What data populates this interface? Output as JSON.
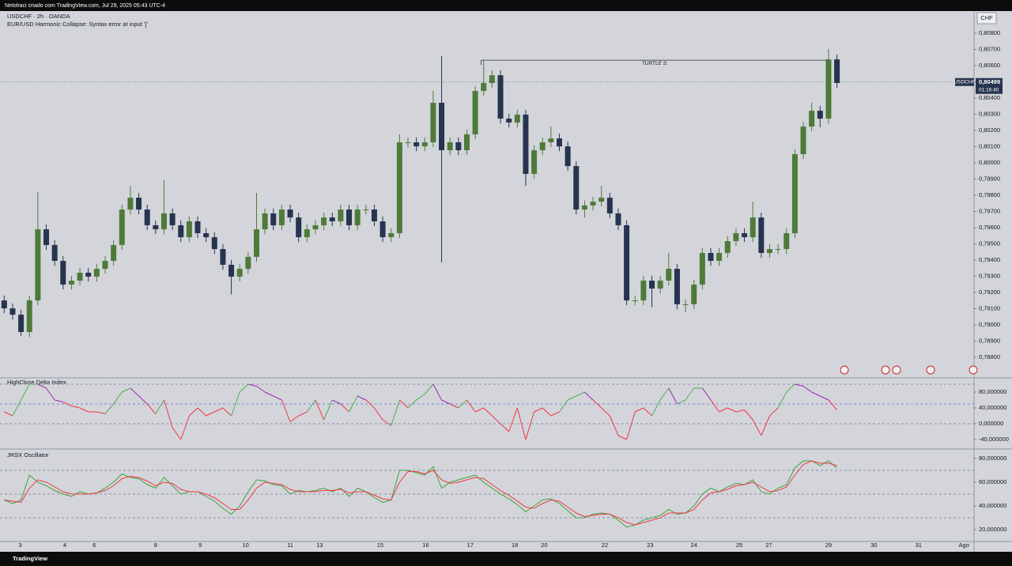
{
  "header": {
    "text": "Netolraci criado com TradingView.com, Jul 29, 2025 05:43 UTC-4"
  },
  "footer": {
    "text": "TradingView"
  },
  "chart_data": [
    {
      "type": "candlestick",
      "title": "USDCHF · 2h · OANDA",
      "subtitle": "EUR/USD Harmonic Collapse: Syntax error at input '['",
      "currency": "CHF",
      "symbol": "USDCHF",
      "last_price": {
        "value": 0.80499,
        "label": "0,80499"
      },
      "countdown": "01:16:40",
      "annotation": {
        "text": "TURTLE S.",
        "value": 0.80634,
        "x": [
          56.7,
          98
        ]
      },
      "up_color": "#4f7a3a",
      "down_color": "#27344f",
      "xlim": [
        -0.5,
        115.3
      ],
      "xticks": [
        {
          "value": 1.9,
          "label": "3"
        },
        {
          "value": 7.2,
          "label": "4"
        },
        {
          "value": 10.7,
          "label": "6"
        },
        {
          "value": 18,
          "label": "8"
        },
        {
          "value": 23.3,
          "label": "9"
        },
        {
          "value": 28.7,
          "label": "10"
        },
        {
          "value": 34,
          "label": "11"
        },
        {
          "value": 37.5,
          "label": "13"
        },
        {
          "value": 44.7,
          "label": "15"
        },
        {
          "value": 50.1,
          "label": "16"
        },
        {
          "value": 55.4,
          "label": "17"
        },
        {
          "value": 60.7,
          "label": "18"
        },
        {
          "value": 64.2,
          "label": "20"
        },
        {
          "value": 71.4,
          "label": "22"
        },
        {
          "value": 76.8,
          "label": "23"
        },
        {
          "value": 82,
          "label": "24"
        },
        {
          "value": 87.4,
          "label": "25"
        },
        {
          "value": 90.9,
          "label": "27"
        },
        {
          "value": 98,
          "label": "29"
        },
        {
          "value": 103.4,
          "label": "30"
        },
        {
          "value": 108.7,
          "label": "31"
        },
        {
          "value": 114.1,
          "label": "Ago"
        }
      ],
      "ylim": [
        0.78673,
        0.80937
      ],
      "yticks": [
        {
          "value": 0.788,
          "label": "0,78800"
        },
        {
          "value": 0.789,
          "label": "0,78900"
        },
        {
          "value": 0.79,
          "label": "0,79000"
        },
        {
          "value": 0.791,
          "label": "0,79100"
        },
        {
          "value": 0.792,
          "label": "0,79200"
        },
        {
          "value": 0.793,
          "label": "0,79300"
        },
        {
          "value": 0.794,
          "label": "0,79400"
        },
        {
          "value": 0.795,
          "label": "0,79500"
        },
        {
          "value": 0.796,
          "label": "0,79600"
        },
        {
          "value": 0.797,
          "label": "0,79700"
        },
        {
          "value": 0.798,
          "label": "0,79800"
        },
        {
          "value": 0.799,
          "label": "0,79900"
        },
        {
          "value": 0.8,
          "label": "0,80000"
        },
        {
          "value": 0.801,
          "label": "0,80100"
        },
        {
          "value": 0.802,
          "label": "0,80200"
        },
        {
          "value": 0.803,
          "label": "0,80300"
        },
        {
          "value": 0.804,
          "label": "0,80400"
        },
        {
          "value": 0.805,
          "label": "0,80500"
        },
        {
          "value": 0.806,
          "label": "0,80600"
        },
        {
          "value": 0.807,
          "label": "0,80700"
        },
        {
          "value": 0.808,
          "label": "0,80800"
        }
      ],
      "open": [
        0.79151,
        0.79102,
        0.79063,
        0.78956,
        0.79151,
        0.7959,
        0.79493,
        0.79395,
        0.79249,
        0.79273,
        0.79322,
        0.79298,
        0.79346,
        0.79395,
        0.79493,
        0.79712,
        0.79785,
        0.79712,
        0.79615,
        0.7959,
        0.79688,
        0.79615,
        0.79541,
        0.79639,
        0.79566,
        0.79541,
        0.79468,
        0.79371,
        0.79298,
        0.79346,
        0.7942,
        0.7959,
        0.79688,
        0.79615,
        0.79712,
        0.79663,
        0.79541,
        0.7959,
        0.79615,
        0.79663,
        0.79639,
        0.79712,
        0.79615,
        0.79712,
        0.79712,
        0.79639,
        0.79541,
        0.79566,
        0.80127,
        0.80127,
        0.80102,
        0.80127,
        0.80371,
        0.80078,
        0.80127,
        0.80078,
        0.80176,
        0.80444,
        0.80493,
        0.80541,
        0.80273,
        0.80249,
        0.80298,
        0.79932,
        0.80078,
        0.80127,
        0.80151,
        0.80102,
        0.7998,
        0.79712,
        0.79737,
        0.79761,
        0.79785,
        0.79688,
        0.79615,
        0.79151,
        0.79151,
        0.79273,
        0.79224,
        0.79273,
        0.79346,
        0.79127,
        0.79127,
        0.79249,
        0.79444,
        0.79395,
        0.79444,
        0.79517,
        0.79566,
        0.79541,
        0.79663,
        0.79444,
        0.79468,
        0.79468,
        0.79566,
        0.80054,
        0.80224,
        0.80322,
        0.80273,
        0.80639
      ],
      "high": [
        0.79181,
        0.79132,
        0.79093,
        0.79181,
        0.7982,
        0.7962,
        0.79523,
        0.79425,
        0.79303,
        0.79352,
        0.79352,
        0.79376,
        0.79425,
        0.79523,
        0.79742,
        0.79858,
        0.79815,
        0.79742,
        0.79645,
        0.79893,
        0.79718,
        0.79645,
        0.79669,
        0.79669,
        0.79596,
        0.79571,
        0.79498,
        0.79401,
        0.79376,
        0.7945,
        0.79815,
        0.79718,
        0.79718,
        0.79742,
        0.79742,
        0.79693,
        0.7962,
        0.79645,
        0.79693,
        0.79693,
        0.79742,
        0.79742,
        0.79742,
        0.79742,
        0.79742,
        0.79669,
        0.79596,
        0.80176,
        0.80157,
        0.80157,
        0.80157,
        0.80444,
        0.80659,
        0.80157,
        0.80157,
        0.80206,
        0.80474,
        0.80639,
        0.80571,
        0.80571,
        0.80303,
        0.80328,
        0.80328,
        0.80108,
        0.80157,
        0.80224,
        0.80181,
        0.80132,
        0.8001,
        0.79767,
        0.79791,
        0.79858,
        0.79815,
        0.79718,
        0.79645,
        0.79181,
        0.79303,
        0.79303,
        0.79303,
        0.79444,
        0.79376,
        0.79157,
        0.79279,
        0.79474,
        0.79474,
        0.79474,
        0.79547,
        0.79596,
        0.79596,
        0.79761,
        0.79693,
        0.79498,
        0.79498,
        0.79596,
        0.80084,
        0.80254,
        0.80371,
        0.80352,
        0.80702,
        0.80669
      ],
      "low": [
        0.79072,
        0.79033,
        0.78932,
        0.78926,
        0.79121,
        0.79463,
        0.79365,
        0.79219,
        0.79219,
        0.79243,
        0.79268,
        0.79268,
        0.79316,
        0.79365,
        0.79463,
        0.79682,
        0.79682,
        0.79585,
        0.7956,
        0.7956,
        0.79585,
        0.79511,
        0.79511,
        0.79536,
        0.79511,
        0.79438,
        0.79341,
        0.79188,
        0.79268,
        0.79316,
        0.7939,
        0.7956,
        0.79585,
        0.79585,
        0.79633,
        0.79511,
        0.79511,
        0.7956,
        0.79585,
        0.79609,
        0.79609,
        0.79585,
        0.79585,
        0.79682,
        0.79609,
        0.79511,
        0.79511,
        0.79536,
        0.80097,
        0.80072,
        0.80072,
        0.80097,
        0.79385,
        0.80048,
        0.80048,
        0.80048,
        0.80146,
        0.80414,
        0.80463,
        0.80243,
        0.80219,
        0.80219,
        0.79858,
        0.79902,
        0.80048,
        0.80097,
        0.80072,
        0.7995,
        0.79682,
        0.79663,
        0.79707,
        0.79731,
        0.79658,
        0.79585,
        0.79121,
        0.79121,
        0.79121,
        0.7911,
        0.79194,
        0.79243,
        0.79097,
        0.79078,
        0.79097,
        0.79219,
        0.79365,
        0.79365,
        0.79414,
        0.79487,
        0.79511,
        0.79511,
        0.79414,
        0.79414,
        0.79438,
        0.79438,
        0.79536,
        0.80024,
        0.80194,
        0.80219,
        0.80243,
        0.80464
      ],
      "close": [
        0.79102,
        0.79063,
        0.78956,
        0.79151,
        0.7959,
        0.79493,
        0.79395,
        0.79249,
        0.79273,
        0.79322,
        0.79298,
        0.79346,
        0.79395,
        0.79493,
        0.79712,
        0.79785,
        0.79712,
        0.79615,
        0.7959,
        0.79688,
        0.79615,
        0.79541,
        0.79639,
        0.79566,
        0.79541,
        0.79468,
        0.79371,
        0.79298,
        0.79346,
        0.7942,
        0.7959,
        0.79688,
        0.79615,
        0.79712,
        0.79663,
        0.79541,
        0.7959,
        0.79615,
        0.79663,
        0.79639,
        0.79712,
        0.79615,
        0.79712,
        0.79712,
        0.79639,
        0.79541,
        0.79566,
        0.80127,
        0.80127,
        0.80102,
        0.80127,
        0.80371,
        0.80078,
        0.80127,
        0.80078,
        0.80176,
        0.80444,
        0.80493,
        0.80541,
        0.80273,
        0.80249,
        0.80298,
        0.79932,
        0.80078,
        0.80127,
        0.80151,
        0.80102,
        0.7998,
        0.79712,
        0.79737,
        0.79761,
        0.79785,
        0.79688,
        0.79615,
        0.79151,
        0.79151,
        0.79273,
        0.79224,
        0.79273,
        0.79346,
        0.79127,
        0.79127,
        0.79249,
        0.79444,
        0.79395,
        0.79444,
        0.79517,
        0.79566,
        0.79541,
        0.79663,
        0.79444,
        0.79468,
        0.79468,
        0.79566,
        0.80054,
        0.80224,
        0.80322,
        0.80273,
        0.80639,
        0.80493
      ]
    },
    {
      "type": "line",
      "title": "HighClose Delta Index",
      "ylim": [
        -64,
        116
      ],
      "yticks": [
        {
          "value": 80,
          "label": "80,000000"
        },
        {
          "value": 40,
          "label": "40,000000"
        },
        {
          "value": 0,
          "label": "0,000000"
        },
        {
          "value": -40,
          "label": "-40,000000"
        }
      ],
      "levels": [
        100,
        50,
        0
      ],
      "level_colors": [
        "#787b86",
        "#5b6bd6",
        "#787b86"
      ],
      "colors": [
        "#4caf50",
        "#9c27b0",
        "#f23645"
      ],
      "series": [
        {
          "values": [
            30,
            20,
            60,
            100,
            100,
            90,
            60,
            55,
            45,
            40,
            30,
            30,
            25,
            50,
            80,
            90,
            70,
            50,
            25,
            60,
            -10,
            -40,
            20,
            40,
            20,
            30,
            40,
            20,
            80,
            100,
            95,
            80,
            70,
            60,
            5,
            20,
            30,
            60,
            10,
            60,
            50,
            30,
            70,
            60,
            40,
            10,
            -5,
            60,
            40,
            60,
            75,
            100,
            60,
            50,
            40,
            60,
            30,
            40,
            20,
            0,
            -20,
            40,
            -40,
            30,
            40,
            20,
            30,
            60,
            70,
            80,
            60,
            40,
            20,
            -30,
            -40,
            30,
            40,
            20,
            60,
            90,
            50,
            60,
            90,
            90,
            60,
            30,
            40,
            30,
            35,
            10,
            -30,
            20,
            40,
            80,
            100,
            95,
            80,
            70,
            60,
            35
          ]
        }
      ]
    },
    {
      "type": "line",
      "title": "JRSX Oscillator",
      "ylim": [
        10,
        88
      ],
      "yticks": [
        {
          "value": 80,
          "label": "80,000000"
        },
        {
          "value": 60,
          "label": "60,000000"
        },
        {
          "value": 40,
          "label": "40,000000"
        },
        {
          "value": 20,
          "label": "20,000000"
        }
      ],
      "levels": [
        70,
        50,
        30
      ],
      "level_colors": [
        "#787b86",
        "#787b86",
        "#787b86"
      ],
      "series": [
        {
          "color": "#3fa33a",
          "values": [
            45,
            42,
            45,
            66,
            60,
            57,
            53,
            50,
            48,
            52,
            50,
            51,
            55,
            60,
            67,
            64,
            63,
            58,
            55,
            64,
            57,
            50,
            52,
            52,
            48,
            44,
            38,
            33,
            40,
            52,
            62,
            61,
            58,
            57,
            50,
            53,
            52,
            53,
            55,
            52,
            55,
            48,
            55,
            52,
            47,
            43,
            45,
            70,
            70,
            68,
            66,
            73,
            55,
            60,
            62,
            64,
            66,
            60,
            55,
            50,
            46,
            41,
            35,
            40,
            45,
            46,
            42,
            36,
            30,
            30,
            33,
            34,
            33,
            28,
            22,
            24,
            28,
            30,
            32,
            37,
            33,
            34,
            40,
            50,
            55,
            52,
            56,
            59,
            58,
            62,
            52,
            50,
            55,
            58,
            72,
            78,
            78,
            74,
            78,
            72
          ]
        },
        {
          "color": "#f23645",
          "values": [
            45,
            44,
            43,
            55,
            62,
            60,
            56,
            52,
            50,
            50,
            50,
            51,
            53,
            57,
            63,
            65,
            64,
            61,
            57,
            60,
            59,
            54,
            52,
            52,
            50,
            47,
            42,
            37,
            37,
            45,
            55,
            60,
            59,
            58,
            54,
            52,
            52,
            52,
            53,
            53,
            54,
            51,
            52,
            52,
            49,
            46,
            45,
            60,
            69,
            69,
            67,
            70,
            62,
            59,
            60,
            62,
            64,
            63,
            58,
            53,
            49,
            44,
            39,
            38,
            42,
            45,
            44,
            39,
            34,
            31,
            32,
            33,
            33,
            30,
            26,
            24,
            26,
            28,
            30,
            34,
            34,
            34,
            37,
            45,
            51,
            52,
            54,
            57,
            58,
            60,
            56,
            52,
            53,
            56,
            66,
            75,
            78,
            76,
            76,
            74
          ]
        }
      ]
    }
  ]
}
